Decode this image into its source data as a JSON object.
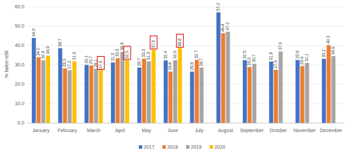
{
  "chart_data": {
    "type": "bar",
    "y_label": "% failed refill",
    "categories": [
      "January",
      "February",
      "March",
      "April",
      "May",
      "June",
      "July",
      "August",
      "September",
      "October",
      "November",
      "December"
    ],
    "series": [
      {
        "name": "2017",
        "color": "#4472c4",
        "values": [
          44.0,
          38.7,
          30.1,
          31.3,
          28.7,
          32.4,
          26.6,
          57.2,
          32.5,
          31.8,
          32.6,
          33.2
        ],
        "value_labels": [
          "44.0",
          "38.7",
          "30.1",
          "31.3",
          "28.7",
          "32.4",
          "26.6",
          "57.2",
          "32.5",
          "31.8",
          "32.6",
          "33.2"
        ]
      },
      {
        "name": "2018",
        "color": "#ed7d31",
        "values": [
          34.0,
          28.3,
          29.7,
          33.5,
          33.3,
          26.6,
          32.7,
          46.4,
          29.0,
          27.5,
          29.5,
          40.3
        ],
        "value_labels": [
          "34.0",
          "28.3",
          "29.7",
          "33.5",
          "33.3",
          "26.6",
          "32.7",
          "46.4",
          "29.0",
          "27.5",
          "29.5",
          "40.3"
        ]
      },
      {
        "name": "2019",
        "color": "#a5a5a5",
        "values": [
          32.4,
          27.3,
          28.1,
          36.8,
          31.9,
          32.5,
          28.7,
          47.2,
          30.7,
          37.0,
          31.1,
          34.6
        ],
        "value_labels": [
          "32.4",
          "27.3",
          "28.1",
          "36.8",
          "31.9",
          "32.5",
          "28.7",
          "47.2",
          "30.7",
          "37.0",
          "31.1",
          "34.6"
        ]
      },
      {
        "name": "2020",
        "color": "#ffc000",
        "values": [
          34.9,
          31.9,
          27.3,
          32.5,
          37.9,
          38.8,
          null,
          null,
          null,
          null,
          null,
          null
        ],
        "value_labels": [
          "34.9",
          "31.9",
          "27.3",
          "32.5",
          "37.9",
          "38.8",
          null,
          null,
          null,
          null,
          null,
          null
        ],
        "boxed_labels": [
          false,
          false,
          true,
          true,
          true,
          true,
          false,
          false,
          false,
          false,
          false,
          false
        ],
        "box_color": "#e00000"
      }
    ],
    "ylim": [
      0,
      60
    ],
    "yticks": [
      {
        "value": 0,
        "label": "0.0"
      },
      {
        "value": 10,
        "label": "10.0"
      },
      {
        "value": 20,
        "label": "20.0"
      },
      {
        "value": 30,
        "label": "30.0"
      },
      {
        "value": 40,
        "label": "40.0"
      },
      {
        "value": 50,
        "label": "50.0"
      },
      {
        "value": 60,
        "label": "60.0"
      }
    ],
    "grid": true,
    "legend": "bottom"
  }
}
